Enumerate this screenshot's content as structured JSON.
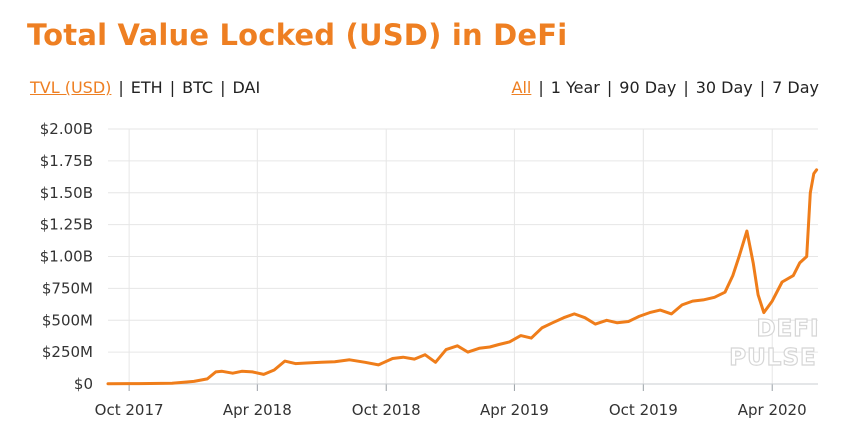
{
  "title": "Total Value Locked (USD) in DeFi",
  "metric_tabs": [
    {
      "label": "TVL (USD)",
      "active": true
    },
    {
      "label": "ETH",
      "active": false
    },
    {
      "label": "BTC",
      "active": false
    },
    {
      "label": "DAI",
      "active": false
    }
  ],
  "range_tabs": [
    {
      "label": "All",
      "active": true
    },
    {
      "label": "1 Year",
      "active": false
    },
    {
      "label": "90 Day",
      "active": false
    },
    {
      "label": "30 Day",
      "active": false
    },
    {
      "label": "7 Day",
      "active": false
    }
  ],
  "watermark": [
    "DEFI",
    "PULSE"
  ],
  "colors": {
    "accent": "#ee7f22",
    "line": "#ef7d1a",
    "grid": "#e6e6e6"
  },
  "chart_data": {
    "type": "line",
    "title": "Total Value Locked (USD) in DeFi",
    "xlabel": "",
    "ylabel": "",
    "grid": true,
    "legend": "none",
    "xlim": [
      "2017-09-01",
      "2020-06-05"
    ],
    "ylim": [
      0,
      2000000000
    ],
    "y_ticks": [
      0,
      250000000,
      500000000,
      750000000,
      1000000000,
      1250000000,
      1500000000,
      1750000000,
      2000000000
    ],
    "y_tick_labels": [
      "$0",
      "$250M",
      "$500M",
      "$750M",
      "$1.00B",
      "$1.25B",
      "$1.50B",
      "$1.75B",
      "$2.00B"
    ],
    "x_ticks": [
      "2017-10-01",
      "2018-04-01",
      "2018-10-01",
      "2019-04-01",
      "2019-10-01",
      "2020-04-01"
    ],
    "x_tick_labels": [
      "Oct 2017",
      "Apr 2018",
      "Oct 2018",
      "Apr 2019",
      "Oct 2019",
      "Apr 2020"
    ],
    "series": [
      {
        "x": [
          "2017-09-01",
          "2017-10-15",
          "2017-12-01",
          "2018-01-01",
          "2018-01-20",
          "2018-02-01",
          "2018-02-10",
          "2018-02-25",
          "2018-03-10",
          "2018-03-25",
          "2018-04-10",
          "2018-04-25",
          "2018-05-10",
          "2018-05-25",
          "2018-06-10",
          "2018-07-01",
          "2018-07-20",
          "2018-08-10",
          "2018-09-01",
          "2018-09-20",
          "2018-10-10",
          "2018-10-25",
          "2018-11-10",
          "2018-11-25",
          "2018-12-10",
          "2018-12-25",
          "2019-01-10",
          "2019-01-25",
          "2019-02-10",
          "2019-02-25",
          "2019-03-10",
          "2019-03-25",
          "2019-04-10",
          "2019-04-25",
          "2019-05-10",
          "2019-05-25",
          "2019-06-10",
          "2019-06-25",
          "2019-07-10",
          "2019-07-25",
          "2019-08-10",
          "2019-08-25",
          "2019-09-10",
          "2019-09-25",
          "2019-10-10",
          "2019-10-25",
          "2019-11-10",
          "2019-11-25",
          "2019-12-10",
          "2019-12-25",
          "2020-01-10",
          "2020-01-25",
          "2020-02-05",
          "2020-02-14",
          "2020-02-25",
          "2020-03-05",
          "2020-03-12",
          "2020-03-20",
          "2020-04-01",
          "2020-04-15",
          "2020-05-01",
          "2020-05-10",
          "2020-05-20",
          "2020-05-25",
          "2020-05-30",
          "2020-06-03"
        ],
        "y": [
          2000000,
          3000000,
          6000000,
          20000000,
          40000000,
          95000000,
          100000000,
          85000000,
          100000000,
          95000000,
          75000000,
          110000000,
          180000000,
          160000000,
          165000000,
          170000000,
          175000000,
          190000000,
          170000000,
          150000000,
          200000000,
          210000000,
          195000000,
          230000000,
          170000000,
          270000000,
          300000000,
          250000000,
          280000000,
          290000000,
          310000000,
          330000000,
          380000000,
          360000000,
          440000000,
          480000000,
          520000000,
          550000000,
          520000000,
          470000000,
          500000000,
          480000000,
          490000000,
          530000000,
          560000000,
          580000000,
          550000000,
          620000000,
          650000000,
          660000000,
          680000000,
          720000000,
          850000000,
          1000000000,
          1200000000,
          950000000,
          700000000,
          560000000,
          650000000,
          800000000,
          850000000,
          950000000,
          1000000000,
          1500000000,
          1650000000,
          1680000000
        ]
      }
    ]
  }
}
